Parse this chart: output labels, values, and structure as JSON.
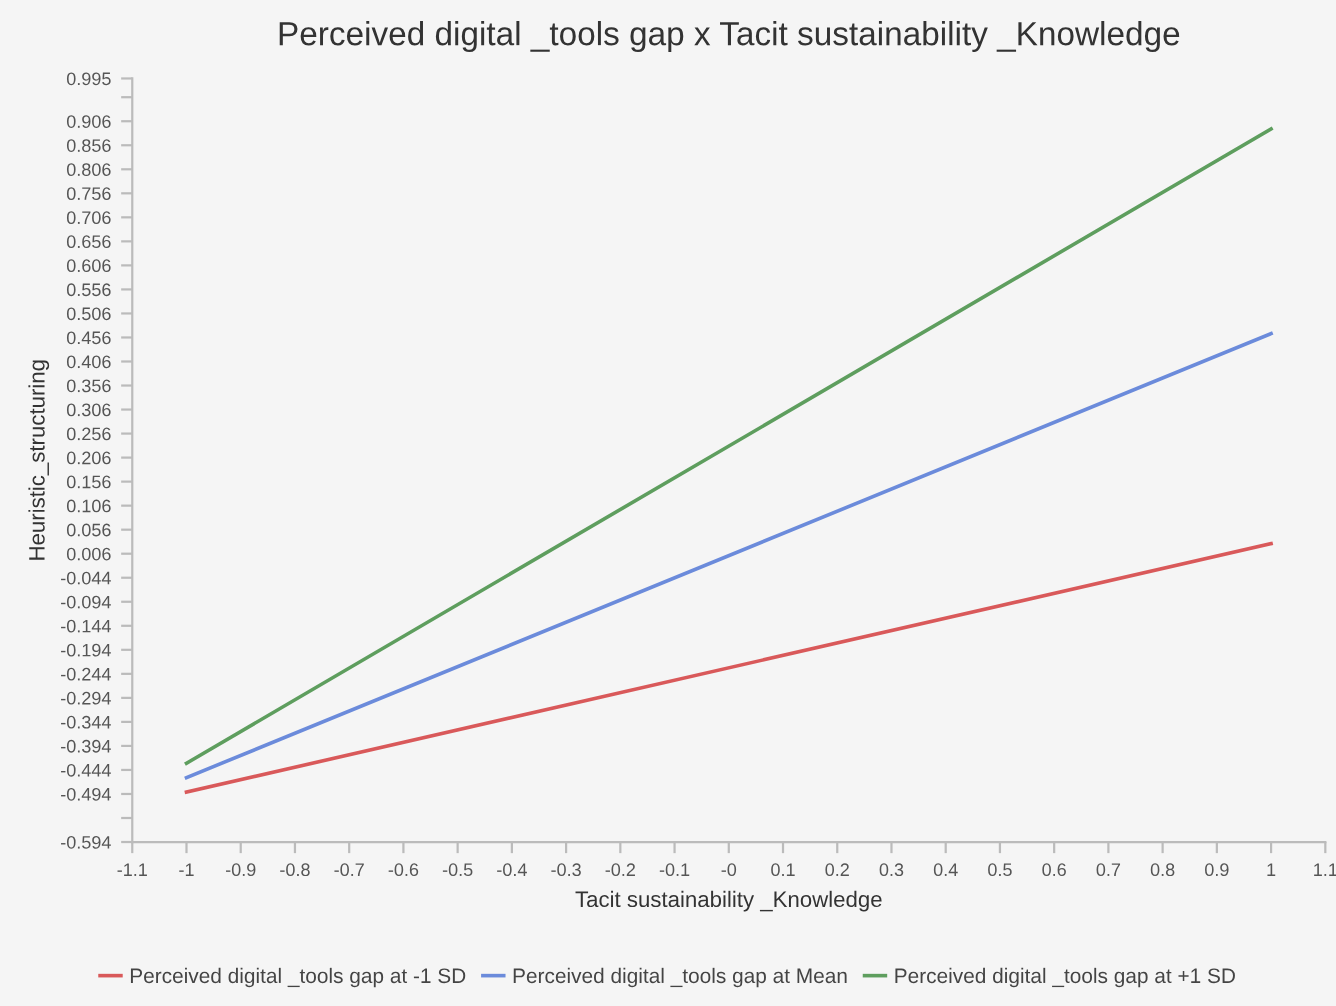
{
  "chart_data": {
    "type": "line",
    "title": "Perceived digital _tools gap x Tacit sustainability _Knowledge",
    "xlabel": "Tacit sustainability _Knowledge",
    "ylabel": "Heuristic_structuring",
    "x": [
      -1,
      1
    ],
    "series": [
      {
        "name": "Perceived digital _tools gap at -1 SD",
        "color": "#d9595a",
        "values": [
          -0.49,
          0.027
        ]
      },
      {
        "name": "Perceived digital _tools gap at Mean",
        "color": "#6b8bdb",
        "values": [
          -0.46,
          0.464
        ]
      },
      {
        "name": "Perceived digital _tools gap at +1 SD",
        "color": "#5e9e5e",
        "values": [
          -0.43,
          0.89
        ]
      }
    ],
    "xlim": [
      -1.1,
      1.1
    ],
    "xticks": [
      -1.1,
      -1,
      -0.9,
      -0.8,
      -0.7,
      -0.6,
      -0.5,
      -0.4,
      -0.3,
      -0.2,
      -0.1,
      {
        "value": 0,
        "label": "-0"
      },
      0.1,
      0.2,
      0.3,
      0.4,
      0.5,
      0.6,
      0.7,
      0.8,
      0.9,
      1,
      1.1
    ],
    "ylim": [
      -0.594,
      0.995
    ],
    "yticks": [
      -0.594,
      {
        "value": -0.544,
        "label": null
      },
      -0.494,
      -0.444,
      -0.394,
      -0.344,
      -0.294,
      -0.244,
      -0.194,
      -0.144,
      -0.094,
      -0.044,
      0.006,
      0.056,
      0.106,
      0.156,
      0.206,
      0.256,
      0.306,
      0.356,
      0.406,
      0.456,
      0.506,
      0.556,
      0.606,
      0.656,
      0.706,
      0.756,
      0.806,
      0.856,
      0.906,
      {
        "value": 0.956,
        "label": null
      },
      0.995
    ],
    "grid": false,
    "legend": "bottom",
    "marker": "none",
    "line_style": "solid"
  }
}
